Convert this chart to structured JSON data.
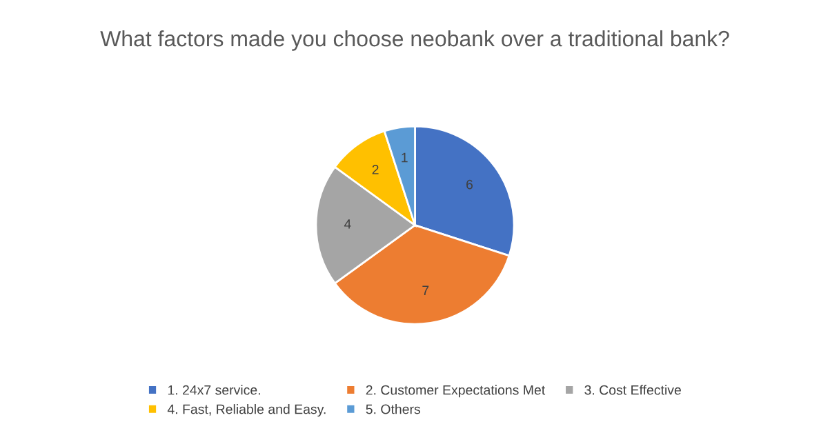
{
  "chart_data": {
    "type": "pie",
    "title": "What factors made you choose neobank over a traditional bank?",
    "categories": [
      "1. 24x7 service.",
      "2. Customer Expectations Met",
      "3. Cost Effective",
      "4. Fast, Reliable and Easy.",
      "5. Others"
    ],
    "values": [
      6,
      7,
      4,
      2,
      1
    ],
    "colors": [
      "#4472c4",
      "#ed7d31",
      "#a5a5a5",
      "#ffc000",
      "#5b9bd5"
    ],
    "data_labels": true,
    "legend": "bottom"
  }
}
